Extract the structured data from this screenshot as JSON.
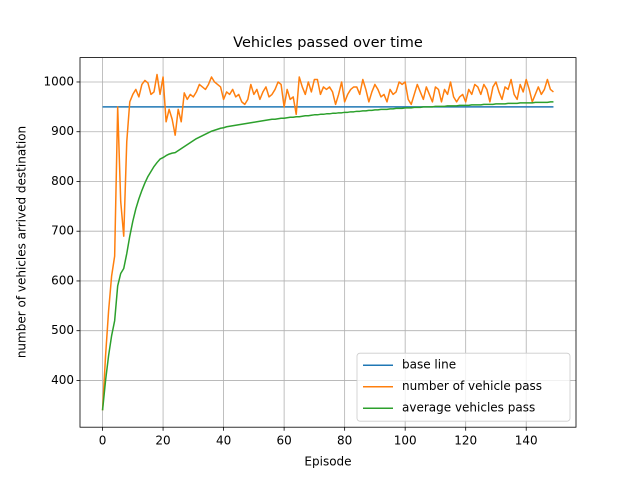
{
  "chart_data": {
    "type": "line",
    "title": "Vehicles passed over time",
    "xlabel": "Episode",
    "ylabel": "number of vehicles arrived destination",
    "x": [
      0,
      1,
      2,
      3,
      4,
      5,
      6,
      7,
      8,
      9,
      10,
      11,
      12,
      13,
      14,
      15,
      16,
      17,
      18,
      19,
      20,
      21,
      22,
      23,
      24,
      25,
      26,
      27,
      28,
      29,
      30,
      31,
      32,
      33,
      34,
      35,
      36,
      37,
      38,
      39,
      40,
      41,
      42,
      43,
      44,
      45,
      46,
      47,
      48,
      49,
      50,
      51,
      52,
      53,
      54,
      55,
      56,
      57,
      58,
      59,
      60,
      61,
      62,
      63,
      64,
      65,
      66,
      67,
      68,
      69,
      70,
      71,
      72,
      73,
      74,
      75,
      76,
      77,
      78,
      79,
      80,
      81,
      82,
      83,
      84,
      85,
      86,
      87,
      88,
      89,
      90,
      91,
      92,
      93,
      94,
      95,
      96,
      97,
      98,
      99,
      100,
      101,
      102,
      103,
      104,
      105,
      106,
      107,
      108,
      109,
      110,
      111,
      112,
      113,
      114,
      115,
      116,
      117,
      118,
      119,
      120,
      121,
      122,
      123,
      124,
      125,
      126,
      127,
      128,
      129,
      130,
      131,
      132,
      133,
      134,
      135,
      136,
      137,
      138,
      139,
      140,
      141,
      142,
      143,
      144,
      145,
      146,
      147,
      148,
      149
    ],
    "series": [
      {
        "name": "base line",
        "color": "#1f77b4",
        "values": [
          950,
          950,
          950,
          950,
          950,
          950,
          950,
          950,
          950,
          950,
          950,
          950,
          950,
          950,
          950,
          950,
          950,
          950,
          950,
          950,
          950,
          950,
          950,
          950,
          950,
          950,
          950,
          950,
          950,
          950,
          950,
          950,
          950,
          950,
          950,
          950,
          950,
          950,
          950,
          950,
          950,
          950,
          950,
          950,
          950,
          950,
          950,
          950,
          950,
          950,
          950,
          950,
          950,
          950,
          950,
          950,
          950,
          950,
          950,
          950,
          950,
          950,
          950,
          950,
          950,
          950,
          950,
          950,
          950,
          950,
          950,
          950,
          950,
          950,
          950,
          950,
          950,
          950,
          950,
          950,
          950,
          950,
          950,
          950,
          950,
          950,
          950,
          950,
          950,
          950,
          950,
          950,
          950,
          950,
          950,
          950,
          950,
          950,
          950,
          950,
          950,
          950,
          950,
          950,
          950,
          950,
          950,
          950,
          950,
          950,
          950,
          950,
          950,
          950,
          950,
          950,
          950,
          950,
          950,
          950,
          950,
          950,
          950,
          950,
          950,
          950,
          950,
          950,
          950,
          950,
          950,
          950,
          950,
          950,
          950,
          950,
          950,
          950,
          950,
          950,
          950,
          950,
          950,
          950,
          950,
          950,
          950,
          950,
          950,
          950
        ]
      },
      {
        "name": "number of vehicle pass",
        "color": "#ff7f0e",
        "values": [
          340,
          450,
          540,
          610,
          650,
          950,
          760,
          690,
          880,
          960,
          975,
          985,
          970,
          995,
          1003,
          998,
          975,
          980,
          1015,
          975,
          1010,
          920,
          945,
          925,
          893,
          945,
          920,
          978,
          965,
          975,
          970,
          980,
          995,
          990,
          985,
          995,
          1010,
          1000,
          995,
          990,
          965,
          980,
          975,
          985,
          970,
          975,
          960,
          955,
          965,
          995,
          975,
          985,
          965,
          980,
          990,
          970,
          975,
          985,
          1000,
          995,
          950,
          985,
          965,
          970,
          935,
          1010,
          990,
          975,
          1000,
          980,
          1005,
          1005,
          975,
          990,
          985,
          990,
          980,
          955,
          975,
          1000,
          960,
          975,
          985,
          990,
          990,
          975,
          1005,
          985,
          960,
          980,
          995,
          985,
          970,
          975,
          960,
          985,
          975,
          980,
          1000,
          995,
          1000,
          965,
          955,
          975,
          995,
          980,
          965,
          990,
          975,
          960,
          990,
          985,
          960,
          985,
          975,
          1000,
          970,
          960,
          970,
          975,
          960,
          985,
          975,
          995,
          990,
          975,
          995,
          985,
          960,
          990,
          1000,
          980,
          965,
          990,
          985,
          1005,
          975,
          965,
          995,
          980,
          1005,
          985,
          960,
          975,
          990,
          975,
          985,
          1005,
          985,
          980
        ]
      },
      {
        "name": "average vehicles pass",
        "color": "#2ca02c",
        "values": [
          340,
          400,
          450,
          490,
          520,
          590,
          615,
          625,
          655,
          690,
          720,
          745,
          765,
          782,
          797,
          810,
          820,
          830,
          838,
          845,
          848,
          852,
          855,
          857,
          858,
          862,
          866,
          870,
          874,
          878,
          882,
          886,
          889,
          892,
          895,
          898,
          901,
          903,
          905,
          907,
          908,
          910,
          911,
          912,
          913,
          914,
          915,
          916,
          917,
          918,
          919,
          920,
          921,
          922,
          923,
          924,
          925,
          925,
          926,
          927,
          927,
          928,
          929,
          929,
          930,
          930,
          931,
          932,
          932,
          933,
          934,
          934,
          935,
          935,
          936,
          936,
          937,
          937,
          938,
          938,
          939,
          939,
          940,
          940,
          941,
          941,
          942,
          942,
          943,
          943,
          944,
          944,
          945,
          945,
          945,
          946,
          946,
          947,
          947,
          947,
          948,
          948,
          948,
          949,
          949,
          949,
          950,
          950,
          950,
          950,
          951,
          951,
          951,
          951,
          952,
          952,
          952,
          952,
          953,
          953,
          953,
          953,
          954,
          954,
          954,
          954,
          955,
          955,
          955,
          955,
          956,
          956,
          956,
          956,
          957,
          957,
          957,
          957,
          958,
          958,
          958,
          958,
          958,
          959,
          959,
          959,
          959,
          959,
          960,
          960
        ]
      }
    ],
    "xlim": [
      -7.45,
      156.45
    ],
    "xticks": [
      0,
      20,
      40,
      60,
      80,
      100,
      120,
      140
    ],
    "ylim": [
      306,
      1049
    ],
    "yticks": [
      400,
      500,
      600,
      700,
      800,
      900,
      1000
    ],
    "grid": true,
    "legend": "lower right"
  }
}
